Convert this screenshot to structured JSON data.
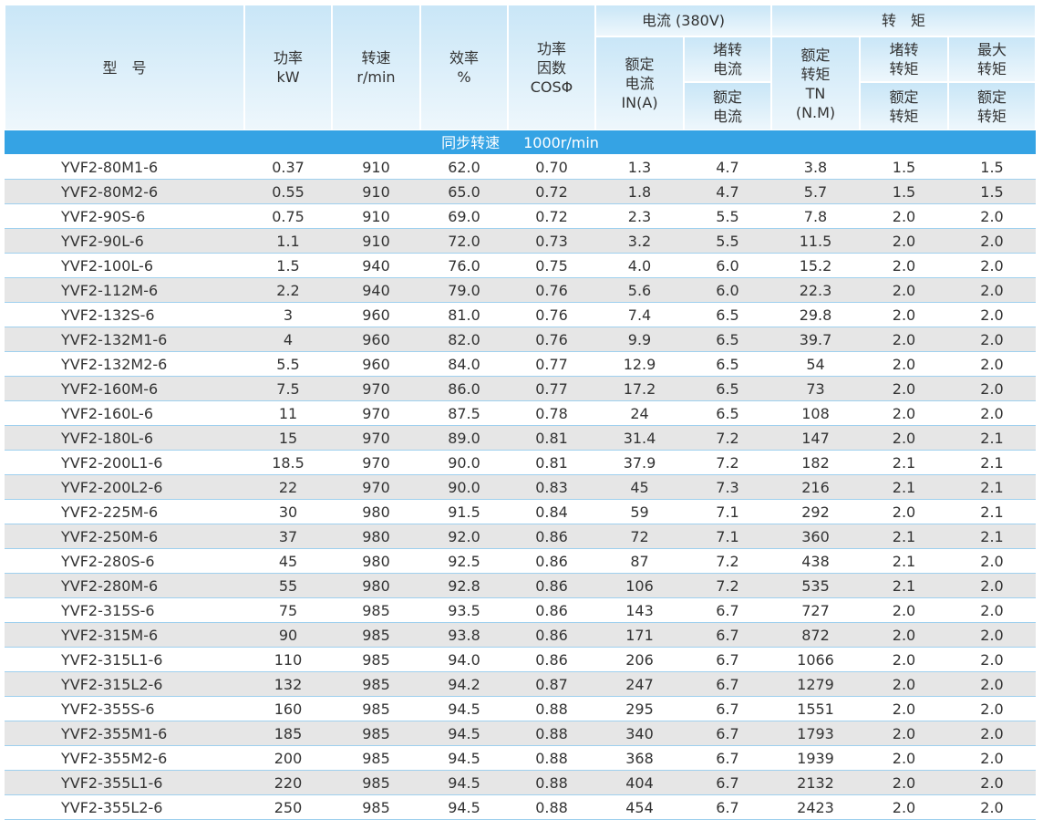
{
  "header": {
    "cells": [
      {
        "lines": [
          "型　号"
        ]
      },
      {
        "lines": [
          "功率",
          "kW"
        ]
      },
      {
        "lines": [
          "转速",
          "r/min"
        ]
      },
      {
        "lines": [
          "效率",
          "%"
        ]
      },
      {
        "lines": [
          "功率",
          "因数",
          "COSΦ"
        ]
      }
    ],
    "groups": [
      {
        "title": "电流 (380V)",
        "columns": [
          {
            "lines": [
              "额定",
              "电流",
              "IN(A)"
            ]
          },
          {
            "top": [
              "堵转",
              "电流"
            ],
            "bottom": [
              "额定",
              "电流"
            ]
          }
        ]
      },
      {
        "title": "转　矩",
        "columns": [
          {
            "lines": [
              "额定",
              "转矩",
              "TN",
              "(N.M)"
            ]
          },
          {
            "top": [
              "堵转",
              "转矩"
            ],
            "bottom": [
              "额定",
              "转矩"
            ]
          },
          {
            "top": [
              "最大",
              "转矩"
            ],
            "bottom": [
              "额定",
              "转矩"
            ]
          }
        ]
      }
    ]
  },
  "section": {
    "label": "同步转速",
    "speed": "1000r/min"
  },
  "table": {
    "rows": [
      [
        "YVF2-80M1-6",
        "0.37",
        "910",
        "62.0",
        "0.70",
        "1.3",
        "4.7",
        "3.8",
        "1.5",
        "1.5"
      ],
      [
        "YVF2-80M2-6",
        "0.55",
        "910",
        "65.0",
        "0.72",
        "1.8",
        "4.7",
        "5.7",
        "1.5",
        "1.5"
      ],
      [
        "YVF2-90S-6",
        "0.75",
        "910",
        "69.0",
        "0.72",
        "2.3",
        "5.5",
        "7.8",
        "2.0",
        "2.0"
      ],
      [
        "YVF2-90L-6",
        "1.1",
        "910",
        "72.0",
        "0.73",
        "3.2",
        "5.5",
        "11.5",
        "2.0",
        "2.0"
      ],
      [
        "YVF2-100L-6",
        "1.5",
        "940",
        "76.0",
        "0.75",
        "4.0",
        "6.0",
        "15.2",
        "2.0",
        "2.0"
      ],
      [
        "YVF2-112M-6",
        "2.2",
        "940",
        "79.0",
        "0.76",
        "5.6",
        "6.0",
        "22.3",
        "2.0",
        "2.0"
      ],
      [
        "YVF2-132S-6",
        "3",
        "960",
        "81.0",
        "0.76",
        "7.4",
        "6.5",
        "29.8",
        "2.0",
        "2.0"
      ],
      [
        "YVF2-132M1-6",
        "4",
        "960",
        "82.0",
        "0.76",
        "9.9",
        "6.5",
        "39.7",
        "2.0",
        "2.0"
      ],
      [
        "YVF2-132M2-6",
        "5.5",
        "960",
        "84.0",
        "0.77",
        "12.9",
        "6.5",
        "54",
        "2.0",
        "2.0"
      ],
      [
        "YVF2-160M-6",
        "7.5",
        "970",
        "86.0",
        "0.77",
        "17.2",
        "6.5",
        "73",
        "2.0",
        "2.0"
      ],
      [
        "YVF2-160L-6",
        "11",
        "970",
        "87.5",
        "0.78",
        "24",
        "6.5",
        "108",
        "2.0",
        "2.0"
      ],
      [
        "YVF2-180L-6",
        "15",
        "970",
        "89.0",
        "0.81",
        "31.4",
        "7.2",
        "147",
        "2.0",
        "2.1"
      ],
      [
        "YVF2-200L1-6",
        "18.5",
        "970",
        "90.0",
        "0.81",
        "37.9",
        "7.2",
        "182",
        "2.1",
        "2.1"
      ],
      [
        "YVF2-200L2-6",
        "22",
        "970",
        "90.0",
        "0.83",
        "45",
        "7.3",
        "216",
        "2.1",
        "2.1"
      ],
      [
        "YVF2-225M-6",
        "30",
        "980",
        "91.5",
        "0.84",
        "59",
        "7.1",
        "292",
        "2.0",
        "2.1"
      ],
      [
        "YVF2-250M-6",
        "37",
        "980",
        "92.0",
        "0.86",
        "72",
        "7.1",
        "360",
        "2.1",
        "2.1"
      ],
      [
        "YVF2-280S-6",
        "45",
        "980",
        "92.5",
        "0.86",
        "87",
        "7.2",
        "438",
        "2.1",
        "2.0"
      ],
      [
        "YVF2-280M-6",
        "55",
        "980",
        "92.8",
        "0.86",
        "106",
        "7.2",
        "535",
        "2.1",
        "2.0"
      ],
      [
        "YVF2-315S-6",
        "75",
        "985",
        "93.5",
        "0.86",
        "143",
        "6.7",
        "727",
        "2.0",
        "2.0"
      ],
      [
        "YVF2-315M-6",
        "90",
        "985",
        "93.8",
        "0.86",
        "171",
        "6.7",
        "872",
        "2.0",
        "2.0"
      ],
      [
        "YVF2-315L1-6",
        "110",
        "985",
        "94.0",
        "0.86",
        "206",
        "6.7",
        "1066",
        "2.0",
        "2.0"
      ],
      [
        "YVF2-315L2-6",
        "132",
        "985",
        "94.2",
        "0.87",
        "247",
        "6.7",
        "1279",
        "2.0",
        "2.0"
      ],
      [
        "YVF2-355S-6",
        "160",
        "985",
        "94.5",
        "0.88",
        "295",
        "6.7",
        "1551",
        "2.0",
        "2.0"
      ],
      [
        "YVF2-355M1-6",
        "185",
        "985",
        "94.5",
        "0.88",
        "340",
        "6.7",
        "1793",
        "2.0",
        "2.0"
      ],
      [
        "YVF2-355M2-6",
        "200",
        "985",
        "94.5",
        "0.88",
        "368",
        "6.7",
        "1939",
        "2.0",
        "2.0"
      ],
      [
        "YVF2-355L1-6",
        "220",
        "985",
        "94.5",
        "0.88",
        "404",
        "6.7",
        "2132",
        "2.0",
        "2.0"
      ],
      [
        "YVF2-355L2-6",
        "250",
        "985",
        "94.5",
        "0.88",
        "454",
        "6.7",
        "2423",
        "2.0",
        "2.0"
      ]
    ]
  }
}
